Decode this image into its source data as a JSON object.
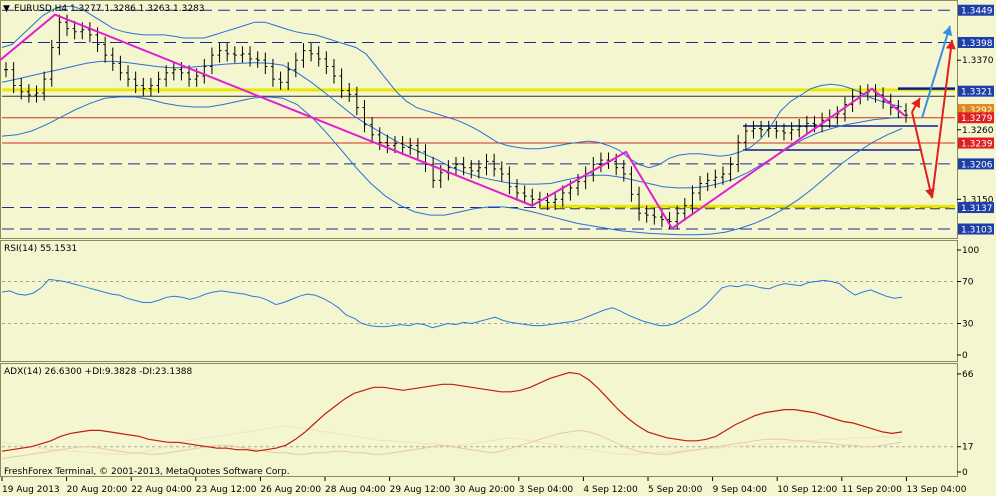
{
  "chart_data": [
    {
      "type": "line",
      "panel": "price",
      "title": "EURUSD,H4  1.3277 1.3286 1.3263 1.3283",
      "ylim": [
        1.3092,
        1.3462
      ],
      "price_ticks": [
        1.337,
        1.3321,
        1.3292,
        1.3279,
        1.326,
        1.3206,
        1.315,
        1.3103
      ],
      "price_labels": [
        {
          "value": 1.3449,
          "text": "1.3449",
          "color": "#1e3fa8"
        },
        {
          "value": 1.3398,
          "text": "1.3398",
          "color": "#1e3fa8"
        },
        {
          "value": 1.3321,
          "text": "1.3321",
          "color": "#1e3fa8"
        },
        {
          "value": 1.3292,
          "text": "1.3292",
          "color": "#e08a1e"
        },
        {
          "value": 1.3279,
          "text": "1.3279",
          "color": "#e02020"
        },
        {
          "value": 1.3239,
          "text": "1.3239",
          "color": "#e02020"
        },
        {
          "value": 1.3206,
          "text": "1.3206",
          "color": "#1e3fa8"
        },
        {
          "value": 1.3137,
          "text": "1.3137",
          "color": "#1e3fa8"
        },
        {
          "value": 1.3103,
          "text": "1.3103",
          "color": "#1e3fa8"
        }
      ],
      "plain_ticks": [
        "1.3370",
        "1.3260",
        "1.3150"
      ],
      "x_ticks": [
        "19 Aug 2013",
        "20 Aug 20:00",
        "22 Aug 04:00",
        "23 Aug 12:00",
        "26 Aug 20:00",
        "28 Aug 04:00",
        "29 Aug 12:00",
        "30 Aug 20:00",
        "3 Sep 04:00",
        "4 Sep 12:00",
        "5 Sep 20:00",
        "9 Sep 04:00",
        "10 Sep 12:00",
        "11 Sep 20:00",
        "13 Sep 04:00"
      ],
      "close": [
        1.3355,
        1.333,
        1.332,
        1.3315,
        1.3318,
        1.334,
        1.339,
        1.343,
        1.342,
        1.3415,
        1.3418,
        1.341,
        1.3395,
        1.3378,
        1.3365,
        1.335,
        1.334,
        1.333,
        1.3325,
        1.333,
        1.334,
        1.335,
        1.3355,
        1.335,
        1.334,
        1.3345,
        1.336,
        1.3378,
        1.3385,
        1.338,
        1.3378,
        1.338,
        1.3372,
        1.337,
        1.336,
        1.334,
        1.3335,
        1.3355,
        1.337,
        1.3385,
        1.338,
        1.3372,
        1.336,
        1.3345,
        1.3322,
        1.3316,
        1.3295,
        1.3268,
        1.3252,
        1.324,
        1.3235,
        1.3238,
        1.3232,
        1.3235,
        1.3225,
        1.3205,
        1.318,
        1.3192,
        1.32,
        1.3205,
        1.32,
        1.3195,
        1.32,
        1.321,
        1.3198,
        1.319,
        1.317,
        1.316,
        1.3155,
        1.315,
        1.3148,
        1.3145,
        1.315,
        1.316,
        1.3168,
        1.3178,
        1.319,
        1.3205,
        1.3212,
        1.321,
        1.32,
        1.319,
        1.3158,
        1.3128,
        1.3125,
        1.3122,
        1.3118,
        1.3115,
        1.3128,
        1.314,
        1.316,
        1.3175,
        1.318,
        1.3185,
        1.319,
        1.3205,
        1.324,
        1.3258,
        1.3262,
        1.326,
        1.3262,
        1.3258,
        1.3255,
        1.326,
        1.3265,
        1.327,
        1.3268,
        1.3275,
        1.328,
        1.3285,
        1.33,
        1.3312,
        1.3318,
        1.332,
        1.3315,
        1.3305,
        1.3295,
        1.329,
        1.3283
      ],
      "bb_upper": [
        1.339,
        1.3395,
        1.341,
        1.3425,
        1.344,
        1.345,
        1.3455,
        1.3455,
        1.345,
        1.344,
        1.343,
        1.342,
        1.3415,
        1.3412,
        1.341,
        1.341,
        1.341,
        1.3408,
        1.3405,
        1.3405,
        1.3405,
        1.341,
        1.3415,
        1.342,
        1.3425,
        1.343,
        1.343,
        1.3425,
        1.342,
        1.3415,
        1.3412,
        1.341,
        1.3405,
        1.34,
        1.3395,
        1.339,
        1.338,
        1.336,
        1.334,
        1.332,
        1.3305,
        1.3295,
        1.329,
        1.3285,
        1.328,
        1.3275,
        1.3268,
        1.326,
        1.325,
        1.324,
        1.3235,
        1.3232,
        1.323,
        1.323,
        1.3232,
        1.3235,
        1.3238,
        1.324,
        1.3242,
        1.324,
        1.3235,
        1.3228,
        1.3215,
        1.3205,
        1.32,
        1.3205,
        1.3215,
        1.322,
        1.3222,
        1.3222,
        1.322,
        1.3218,
        1.322,
        1.3225,
        1.3232,
        1.3245,
        1.3265,
        1.329,
        1.3305,
        1.3315,
        1.3325,
        1.333,
        1.3332,
        1.333,
        1.3325,
        1.3318,
        1.331,
        1.3305,
        1.33,
        1.3296
      ],
      "bb_mid": [
        1.3335,
        1.334,
        1.3345,
        1.335,
        1.3355,
        1.336,
        1.3365,
        1.3368,
        1.3368,
        1.3366,
        1.3363,
        1.336,
        1.3358,
        1.3358,
        1.336,
        1.3362,
        1.3364,
        1.3365,
        1.3366,
        1.3365,
        1.3362,
        1.335,
        1.3335,
        1.3318,
        1.33,
        1.3282,
        1.3268,
        1.3255,
        1.3242,
        1.3232,
        1.3222,
        1.3212,
        1.32,
        1.3192,
        1.3185,
        1.318,
        1.3176,
        1.3174,
        1.3174,
        1.3175,
        1.318,
        1.3185,
        1.3188,
        1.3188,
        1.3185,
        1.318,
        1.3175,
        1.317,
        1.3168,
        1.3168,
        1.317,
        1.3175,
        1.3182,
        1.3192,
        1.3205,
        1.3218,
        1.3232,
        1.3245,
        1.3255,
        1.3262,
        1.3268,
        1.3272,
        1.3276,
        1.3278,
        1.328
      ],
      "bb_lower": [
        1.325,
        1.3252,
        1.3258,
        1.3268,
        1.328,
        1.3292,
        1.3302,
        1.331,
        1.3312,
        1.3312,
        1.3308,
        1.3302,
        1.3298,
        1.3296,
        1.3296,
        1.33,
        1.3305,
        1.331,
        1.3312,
        1.331,
        1.33,
        1.328,
        1.3255,
        1.3228,
        1.32,
        1.3175,
        1.3155,
        1.314,
        1.313,
        1.3125,
        1.3125,
        1.313,
        1.3135,
        1.3138,
        1.3138,
        1.3135,
        1.313,
        1.3124,
        1.3118,
        1.3112,
        1.3108,
        1.3104,
        1.31,
        1.3098,
        1.3096,
        1.3095,
        1.3094,
        1.3094,
        1.3095,
        1.3098,
        1.3104,
        1.3112,
        1.3122,
        1.3135,
        1.315,
        1.3168,
        1.3188,
        1.3208,
        1.3225,
        1.324,
        1.3252,
        1.3262
      ]
    },
    {
      "type": "line",
      "panel": "rsi",
      "title": "RSI(14) 55.1531",
      "ylim": [
        0,
        100
      ],
      "ticks": [
        100,
        70,
        30,
        0
      ],
      "levels": [
        70,
        30
      ],
      "values": [
        60,
        61,
        58,
        57,
        59,
        64,
        72,
        71,
        70,
        68,
        66,
        64,
        62,
        60,
        58,
        57,
        54,
        52,
        50,
        50,
        52,
        55,
        56,
        55,
        53,
        55,
        58,
        60,
        61,
        60,
        59,
        58,
        56,
        55,
        52,
        48,
        50,
        53,
        56,
        58,
        57,
        54,
        50,
        45,
        38,
        35,
        30,
        28,
        27,
        27,
        28,
        29,
        28,
        30,
        29,
        26,
        28,
        30,
        29,
        31,
        30,
        32,
        34,
        36,
        33,
        31,
        30,
        29,
        28,
        28,
        29,
        30,
        31,
        32,
        34,
        37,
        40,
        43,
        45,
        42,
        38,
        35,
        32,
        30,
        28,
        28,
        30,
        34,
        38,
        42,
        48,
        56,
        64,
        66,
        65,
        67,
        66,
        64,
        63,
        66,
        68,
        67,
        66,
        69,
        70,
        71,
        70,
        68,
        62,
        57,
        60,
        62,
        59,
        56,
        54,
        55
      ]
    },
    {
      "type": "line",
      "panel": "adx",
      "title": "ADX(14) 26.6300 +DI:9.3828 -DI:23.1388",
      "ylim": [
        0,
        70
      ],
      "ticks": [
        66,
        17,
        0
      ],
      "levels": [
        17
      ],
      "series": [
        {
          "color": "#c21d10",
          "values": [
            14,
            15,
            16,
            17,
            19,
            21,
            24,
            26,
            27,
            28,
            28,
            27,
            26,
            25,
            24,
            22,
            21,
            20,
            20,
            19,
            18,
            17,
            16,
            16,
            15,
            15,
            14,
            15,
            16,
            18,
            22,
            27,
            33,
            39,
            44,
            49,
            53,
            55,
            57,
            57,
            56,
            55,
            56,
            57,
            58,
            59,
            59,
            58,
            57,
            56,
            55,
            54,
            54,
            55,
            57,
            60,
            63,
            65,
            67,
            66,
            62,
            56,
            49,
            42,
            36,
            31,
            27,
            25,
            23,
            22,
            21,
            21,
            22,
            24,
            28,
            32,
            35,
            38,
            40,
            41,
            42,
            42,
            41,
            40,
            38,
            36,
            34,
            33,
            31,
            29,
            27,
            26,
            27
          ]
        },
        {
          "color": "#e8c8a8",
          "values": [
            9,
            10,
            11,
            12,
            13,
            14,
            15,
            16,
            17,
            17,
            16,
            15,
            14,
            13,
            13,
            12,
            12,
            13,
            14,
            15,
            16,
            17,
            18,
            18,
            17,
            16,
            15,
            14,
            13,
            13,
            12,
            12,
            13,
            13,
            14,
            14,
            13,
            13,
            12,
            12,
            13,
            14,
            15,
            16,
            17,
            18,
            17,
            16,
            15,
            14,
            13,
            14,
            16,
            18,
            20,
            22,
            24,
            26,
            27,
            28,
            27,
            25,
            22,
            19,
            16,
            14,
            13,
            12,
            12,
            13,
            14,
            15,
            16,
            17,
            18,
            19,
            20,
            21,
            22,
            22,
            22,
            21,
            21,
            20,
            20,
            19,
            18,
            18,
            17,
            17,
            18,
            19,
            20
          ]
        },
        {
          "color": "#f0e0c8",
          "values": [
            20,
            19,
            18,
            17,
            16,
            15,
            15,
            14,
            14,
            13,
            13,
            12,
            12,
            12,
            13,
            14,
            16,
            18,
            20,
            21,
            22,
            23,
            24,
            25,
            26,
            27,
            28,
            29,
            30,
            31,
            30,
            29,
            28,
            27,
            26,
            25,
            24,
            23,
            22,
            21,
            21,
            20,
            20,
            19,
            19,
            18,
            18,
            18,
            19,
            20,
            21,
            22,
            23,
            22,
            21,
            20,
            19,
            18,
            17,
            16,
            15,
            14,
            13,
            12,
            12,
            12,
            13,
            13,
            14,
            14,
            15,
            15,
            16,
            16,
            17,
            17,
            18,
            18,
            19,
            19,
            20,
            20,
            21,
            21,
            22,
            22,
            22,
            23,
            23,
            23,
            24,
            23,
            23
          ]
        }
      ]
    }
  ],
  "footer": "FreshForex Terminal, © 2001-2013, MetaQuotes Software Corp."
}
